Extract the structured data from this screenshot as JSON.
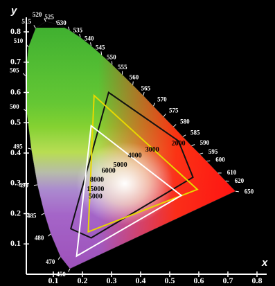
{
  "chart_data": {
    "type": "chromaticity",
    "x_label": "x",
    "y_label": "y",
    "xlim": [
      0,
      0.8
    ],
    "ylim": [
      0,
      0.8
    ],
    "xticks": [
      0.1,
      0.2,
      0.3,
      0.4,
      0.5,
      0.6,
      0.7,
      0.8
    ],
    "yticks": [
      0.1,
      0.2,
      0.3,
      0.4,
      0.5,
      0.6,
      0.7,
      0.8
    ],
    "locus": [
      {
        "wavelength": 450,
        "x": 0.157,
        "y": 0.018
      },
      {
        "wavelength": 470,
        "x": 0.124,
        "y": 0.058
      },
      {
        "wavelength": 480,
        "x": 0.091,
        "y": 0.133
      },
      {
        "wavelength": 485,
        "x": 0.069,
        "y": 0.201
      },
      {
        "wavelength": 490,
        "x": 0.045,
        "y": 0.295
      },
      {
        "wavelength": 495,
        "x": 0.024,
        "y": 0.413
      },
      {
        "wavelength": 500,
        "x": 0.008,
        "y": 0.538
      },
      {
        "wavelength": 505,
        "x": 0.004,
        "y": 0.655
      },
      {
        "wavelength": 510,
        "x": 0.014,
        "y": 0.75
      },
      {
        "wavelength": 515,
        "x": 0.039,
        "y": 0.812
      },
      {
        "wavelength": 520,
        "x": 0.074,
        "y": 0.834
      },
      {
        "wavelength": 525,
        "x": 0.114,
        "y": 0.826
      },
      {
        "wavelength": 530,
        "x": 0.155,
        "y": 0.806
      },
      {
        "wavelength": 535,
        "x": 0.193,
        "y": 0.782
      },
      {
        "wavelength": 540,
        "x": 0.23,
        "y": 0.754
      },
      {
        "wavelength": 545,
        "x": 0.266,
        "y": 0.724
      },
      {
        "wavelength": 550,
        "x": 0.302,
        "y": 0.692
      },
      {
        "wavelength": 555,
        "x": 0.337,
        "y": 0.659
      },
      {
        "wavelength": 560,
        "x": 0.373,
        "y": 0.625
      },
      {
        "wavelength": 565,
        "x": 0.409,
        "y": 0.59
      },
      {
        "wavelength": 570,
        "x": 0.444,
        "y": 0.555
      },
      {
        "wavelength": 575,
        "x": 0.479,
        "y": 0.52
      },
      {
        "wavelength": 580,
        "x": 0.513,
        "y": 0.487
      },
      {
        "wavelength": 585,
        "x": 0.545,
        "y": 0.454
      },
      {
        "wavelength": 590,
        "x": 0.575,
        "y": 0.424
      },
      {
        "wavelength": 595,
        "x": 0.603,
        "y": 0.397
      },
      {
        "wavelength": 600,
        "x": 0.627,
        "y": 0.373
      },
      {
        "wavelength": 610,
        "x": 0.666,
        "y": 0.334
      },
      {
        "wavelength": 620,
        "x": 0.692,
        "y": 0.308
      },
      {
        "wavelength": 650,
        "x": 0.726,
        "y": 0.274
      }
    ],
    "gamuts": [
      {
        "color": "#111111",
        "x": [
          0.29,
          0.53,
          0.58,
          0.23,
          0.16
        ],
        "y": [
          0.6,
          0.44,
          0.32,
          0.12,
          0.15
        ]
      },
      {
        "color": "#e8d800",
        "x": [
          0.24,
          0.595,
          0.22
        ],
        "y": [
          0.59,
          0.28,
          0.14
        ]
      },
      {
        "color": "#ffffff",
        "x": [
          0.23,
          0.54,
          0.18
        ],
        "y": [
          0.49,
          0.26,
          0.06
        ]
      }
    ],
    "planckian": [
      {
        "label": "2000",
        "x": 0.53,
        "y": 0.43
      },
      {
        "label": "3000",
        "x": 0.44,
        "y": 0.41
      },
      {
        "label": "4000",
        "x": 0.38,
        "y": 0.39
      },
      {
        "label": "5000",
        "x": 0.33,
        "y": 0.36
      },
      {
        "label": "6000",
        "x": 0.29,
        "y": 0.34
      },
      {
        "label": "8000",
        "x": 0.25,
        "y": 0.31
      },
      {
        "label": "15000",
        "x": 0.245,
        "y": 0.28
      },
      {
        "label": "5000",
        "x": 0.245,
        "y": 0.255
      }
    ]
  }
}
